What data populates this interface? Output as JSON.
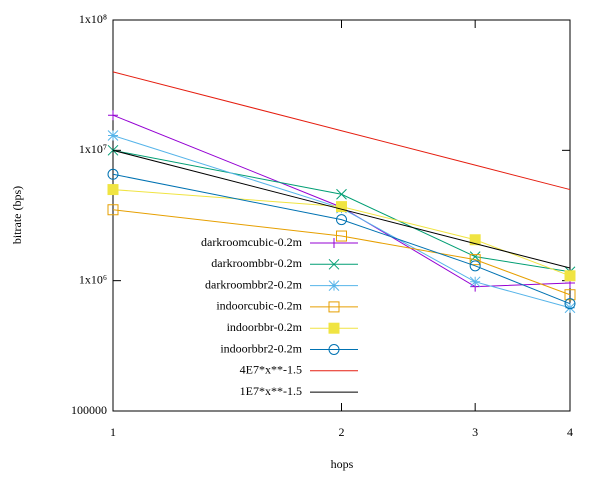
{
  "chart_data": {
    "type": "line",
    "x_label": "hops",
    "y_label": "bitrate (bps)",
    "x": [
      1,
      2,
      3,
      4
    ],
    "xlim": [
      1,
      4
    ],
    "xticks": [
      1,
      2,
      3,
      4
    ],
    "ylim": [
      100000,
      100000000
    ],
    "yticks": [
      100000,
      {
        "value": 1000000,
        "label": "1x10⁶"
      },
      {
        "value": 10000000,
        "label": "1x10⁷"
      },
      {
        "value": 100000000,
        "label": "1x10⁸"
      }
    ],
    "xlog": true,
    "ylog": true,
    "grid": false,
    "legend": "center",
    "series": [
      {
        "name": "darkroomcubic-0.2m",
        "color": "#9400d3",
        "marker": "plus",
        "values": [
          18600000,
          3660000,
          900000,
          960000
        ]
      },
      {
        "name": "darkroombbr-0.2m",
        "color": "#009e73",
        "marker": "cross",
        "values": [
          10000000,
          4600000,
          1530000,
          1170000
        ]
      },
      {
        "name": "darkroombbr2-0.2m",
        "color": "#56b4e9",
        "marker": "star",
        "values": [
          13000000,
          3600000,
          980000,
          620000
        ]
      },
      {
        "name": "indoorcubic-0.2m",
        "color": "#e69f00",
        "marker": "square",
        "values": [
          3500000,
          2200000,
          1450000,
          780000
        ]
      },
      {
        "name": "indoorbbr-0.2m",
        "color": "#f0e442",
        "marker": "filled-square",
        "values": [
          5000000,
          3700000,
          2060000,
          1090000
        ]
      },
      {
        "name": "indoorbbr2-0.2m",
        "color": "#0072b2",
        "marker": "circle",
        "values": [
          6550000,
          2940000,
          1300000,
          666000
        ]
      },
      {
        "name": "4E7*x**-1.5",
        "color": "#e51e10",
        "marker": "none",
        "values": [
          40000000,
          14142136,
          7698004,
          5000000
        ]
      },
      {
        "name": "1E7*x**-1.5",
        "color": "#000000",
        "marker": "none",
        "values": [
          10000000,
          3535534,
          1924501,
          1250000
        ]
      }
    ]
  }
}
